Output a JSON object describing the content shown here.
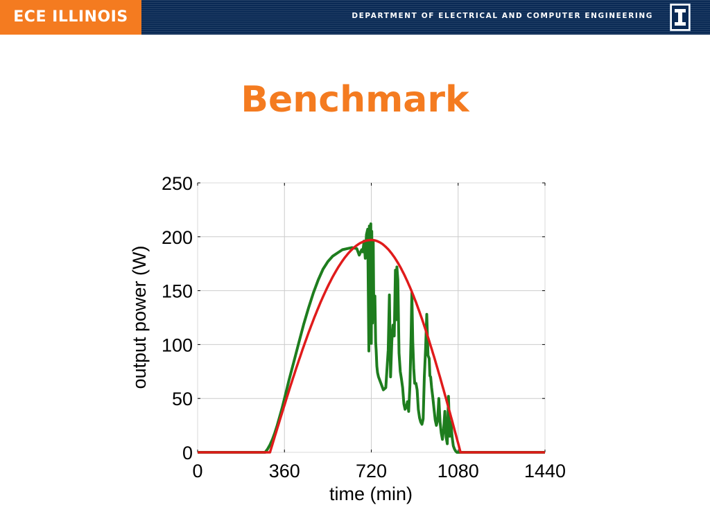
{
  "header": {
    "brand": "ECE ILLINOIS",
    "department": "DEPARTMENT OF ELECTRICAL AND COMPUTER ENGINEERING",
    "logo_icon": "illinois-i-icon",
    "brand_color": "#f47b20",
    "bar_color": "#0a2a55"
  },
  "slide": {
    "title": "Benchmark"
  },
  "chart_data": {
    "type": "line",
    "xlabel": "time (min)",
    "ylabel": "output power (W)",
    "xlim": [
      0,
      1440
    ],
    "ylim": [
      0,
      250
    ],
    "xticks": [
      0,
      360,
      720,
      1080,
      1440
    ],
    "yticks": [
      0,
      50,
      100,
      150,
      200,
      250
    ],
    "grid": true,
    "series": [
      {
        "color": "#1e7d1e",
        "x": [
          0,
          280,
          290,
          300,
          310,
          320,
          330,
          340,
          350,
          360,
          380,
          400,
          420,
          440,
          460,
          480,
          500,
          520,
          540,
          560,
          580,
          600,
          620,
          640,
          660,
          670,
          680,
          685,
          690,
          695,
          700,
          705,
          710,
          712,
          715,
          718,
          720,
          722,
          725,
          728,
          730,
          733,
          735,
          738,
          740,
          743,
          746,
          750,
          760,
          770,
          780,
          790,
          795,
          800,
          805,
          810,
          815,
          820,
          823,
          826,
          830,
          835,
          840,
          845,
          850,
          855,
          860,
          865,
          870,
          875,
          880,
          885,
          888,
          892,
          896,
          900,
          905,
          910,
          915,
          920,
          925,
          930,
          935,
          940,
          945,
          950,
          955,
          960,
          963,
          966,
          970,
          975,
          980,
          985,
          990,
          995,
          1000,
          1005,
          1010,
          1015,
          1020,
          1025,
          1030,
          1035,
          1040,
          1045,
          1050,
          1055,
          1060,
          1065,
          1070,
          1075,
          1080,
          1440
        ],
        "y": [
          0,
          0,
          3,
          7,
          12,
          18,
          25,
          33,
          41,
          50,
          68,
          85,
          102,
          119,
          134,
          148,
          160,
          170,
          177,
          182,
          185,
          188,
          189,
          190,
          189,
          183,
          188,
          186,
          196,
          180,
          202,
          207,
          94,
          210,
          110,
          212,
          101,
          205,
          120,
          196,
          140,
          128,
          145,
          102,
          95,
          80,
          74,
          70,
          64,
          58,
          60,
          95,
          146,
          70,
          103,
          118,
          108,
          169,
          123,
          172,
          160,
          92,
          75,
          68,
          60,
          45,
          40,
          42,
          47,
          38,
          62,
          108,
          148,
          103,
          78,
          64,
          64,
          58,
          40,
          32,
          28,
          26,
          31,
          70,
          96,
          128,
          90,
          87,
          71,
          70,
          60,
          51,
          40,
          30,
          25,
          30,
          50,
          28,
          18,
          12,
          22,
          38,
          14,
          8,
          52,
          15,
          28,
          14,
          6,
          3,
          1,
          0,
          0,
          0
        ]
      },
      {
        "color": "#e01b1b",
        "shape": "half-sine",
        "start": 300,
        "peak_x": 720,
        "end": 1090,
        "peak": 197
      }
    ]
  }
}
